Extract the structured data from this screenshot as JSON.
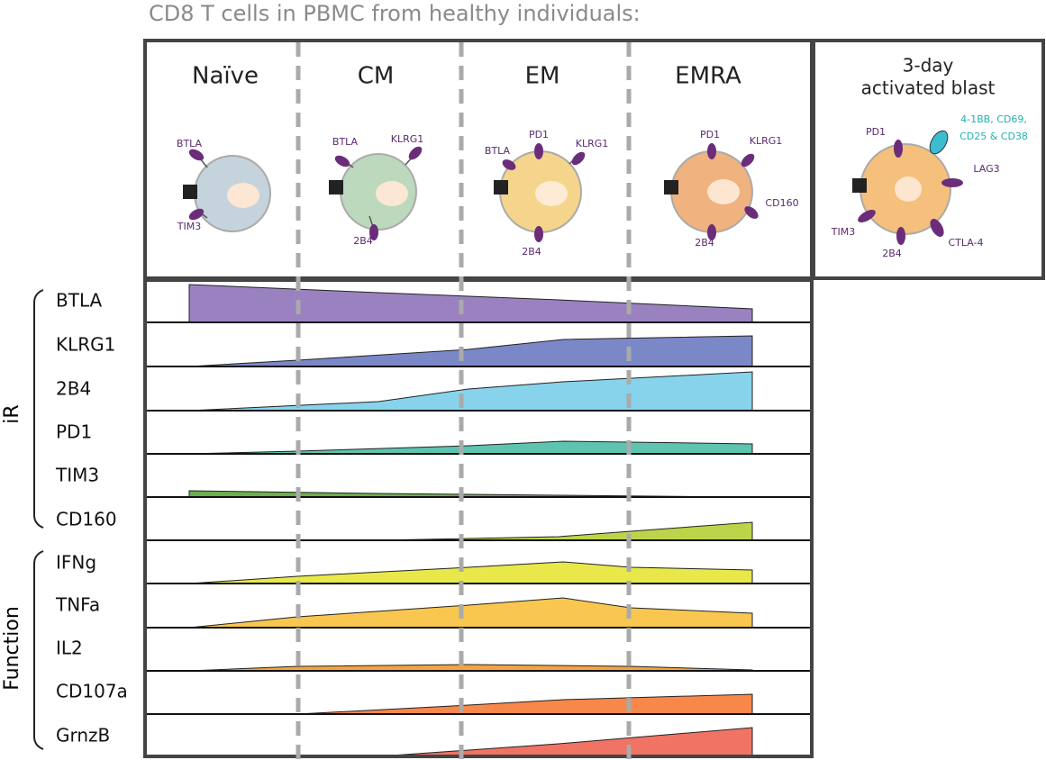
{
  "header": {
    "title": "CD8 T cells in PBMC from healthy individuals:"
  },
  "stages": [
    {
      "label": "Naïve"
    },
    {
      "label": "CM"
    },
    {
      "label": "EM"
    },
    {
      "label": "EMRA"
    }
  ],
  "blast": {
    "title": [
      "3-day",
      "activated blast"
    ]
  },
  "cells": [
    {
      "markers": [
        "BTLA",
        "TIM3"
      ]
    },
    {
      "markers": [
        "BTLA",
        "KLRG1",
        "2B4"
      ]
    },
    {
      "markers": [
        "PD1",
        "BTLA",
        "KLRG1",
        "2B4"
      ]
    },
    {
      "markers": [
        "PD1",
        "KLRG1",
        "CD160",
        "2B4"
      ]
    },
    {
      "markers": [
        "PD1",
        "4-1BB, CD69,",
        "CD25 & CD38",
        "LAG3",
        "TIM3",
        "2B4",
        "CTLA-4"
      ]
    }
  ],
  "groups": [
    {
      "label": "iR",
      "rows": [
        "BTLA",
        "KLRG1",
        "2B4",
        "PD1",
        "TIM3",
        "CD160"
      ]
    },
    {
      "label": "Function",
      "rows": [
        "IFNg",
        "TNFa",
        "IL2",
        "CD107a",
        "GrnzB"
      ]
    }
  ]
}
